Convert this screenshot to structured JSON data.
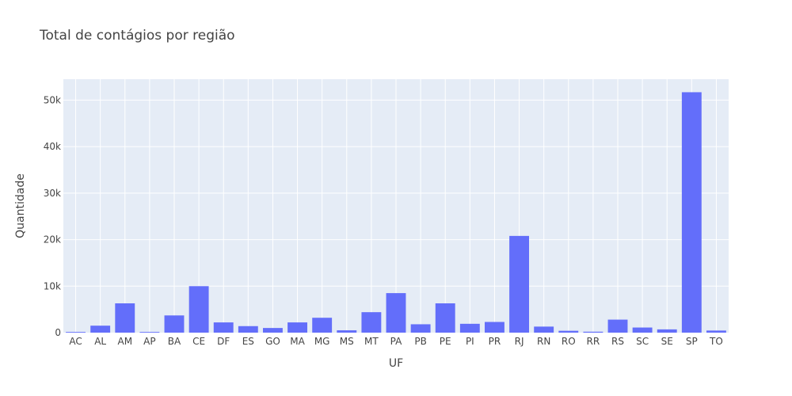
{
  "chart_data": {
    "type": "bar",
    "title": "Total de contágios por região",
    "xlabel": "UF",
    "ylabel": "Quantidade",
    "categories": [
      "AC",
      "AL",
      "AM",
      "AP",
      "BA",
      "CE",
      "DF",
      "ES",
      "GO",
      "MA",
      "MG",
      "MS",
      "MT",
      "PA",
      "PB",
      "PE",
      "PI",
      "PR",
      "RJ",
      "RN",
      "RO",
      "RR",
      "RS",
      "SC",
      "SE",
      "SP",
      "TO"
    ],
    "values": [
      150,
      1500,
      6300,
      150,
      3700,
      10000,
      2200,
      1400,
      1000,
      2200,
      3200,
      500,
      4400,
      8500,
      1800,
      6300,
      1900,
      2300,
      20800,
      1300,
      400,
      200,
      2800,
      1100,
      700,
      51700,
      450
    ],
    "ylim": [
      0,
      54500
    ],
    "yticks": [
      0,
      10000,
      20000,
      30000,
      40000,
      50000
    ],
    "ytick_labels": [
      "0",
      "10k",
      "20k",
      "30k",
      "40k",
      "50k"
    ],
    "grid": true,
    "colors": {
      "bar": "#636efa",
      "plot_bg": "#e5ecf6",
      "grid": "#ffffff",
      "text": "#444444"
    }
  }
}
